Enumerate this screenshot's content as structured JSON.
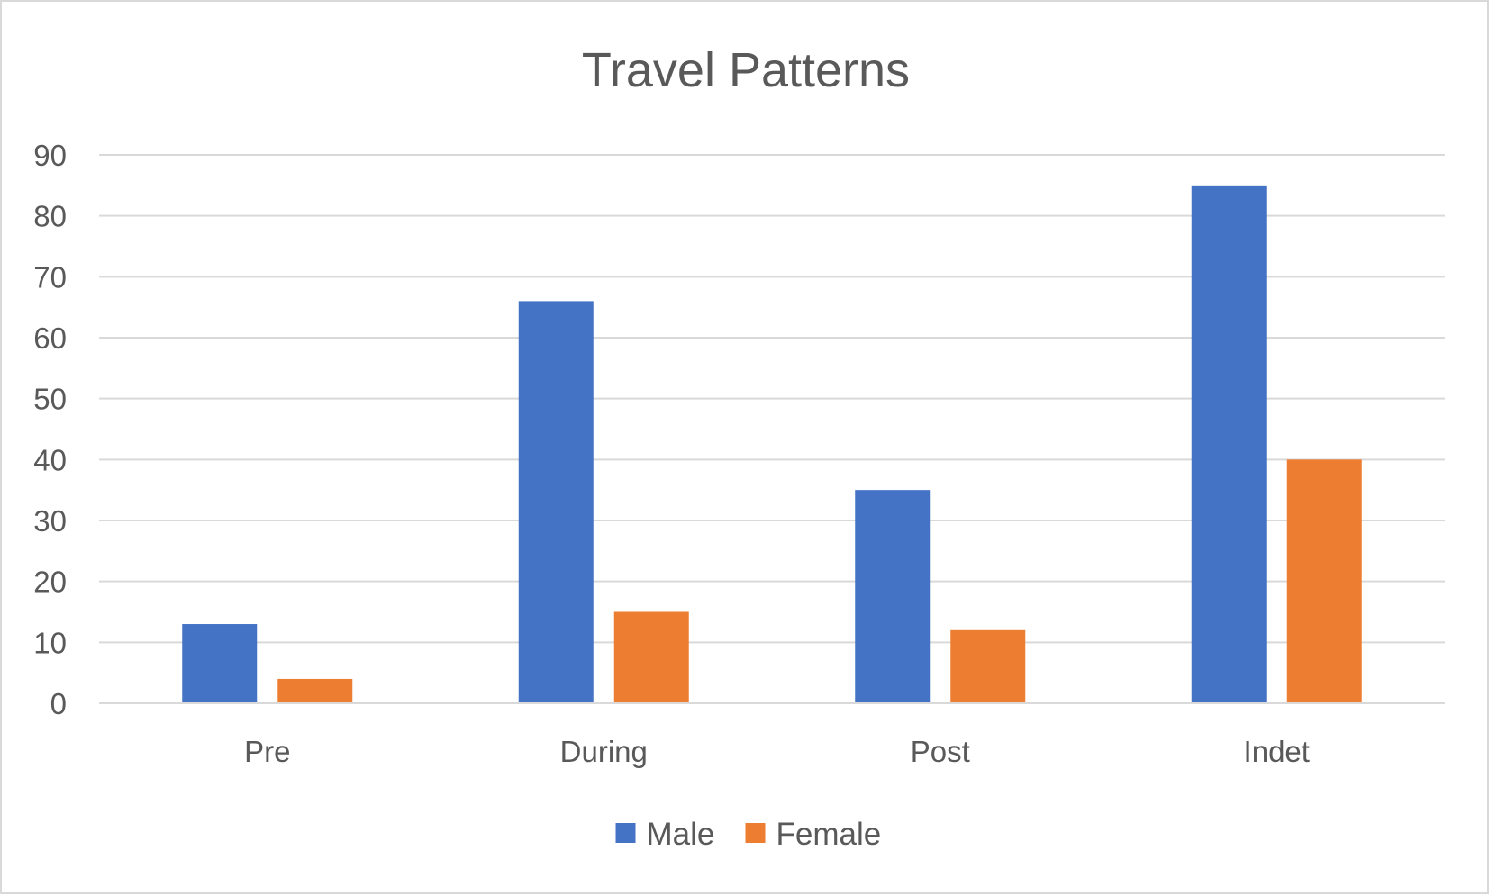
{
  "chart_data": {
    "type": "bar",
    "title": "Travel Patterns",
    "xlabel": "",
    "ylabel": "",
    "categories": [
      "Pre",
      "During",
      "Post",
      "Indet"
    ],
    "series": [
      {
        "name": "Male",
        "color": "#4472C4",
        "values": [
          13,
          66,
          35,
          85
        ]
      },
      {
        "name": "Female",
        "color": "#ED7D31",
        "values": [
          4,
          15,
          12,
          40
        ]
      }
    ],
    "ylim": [
      0,
      90
    ],
    "yticks": [
      "0",
      "10",
      "20",
      "30",
      "40",
      "50",
      "60",
      "70",
      "80",
      "90"
    ],
    "grid": true,
    "legend_position": "bottom"
  }
}
